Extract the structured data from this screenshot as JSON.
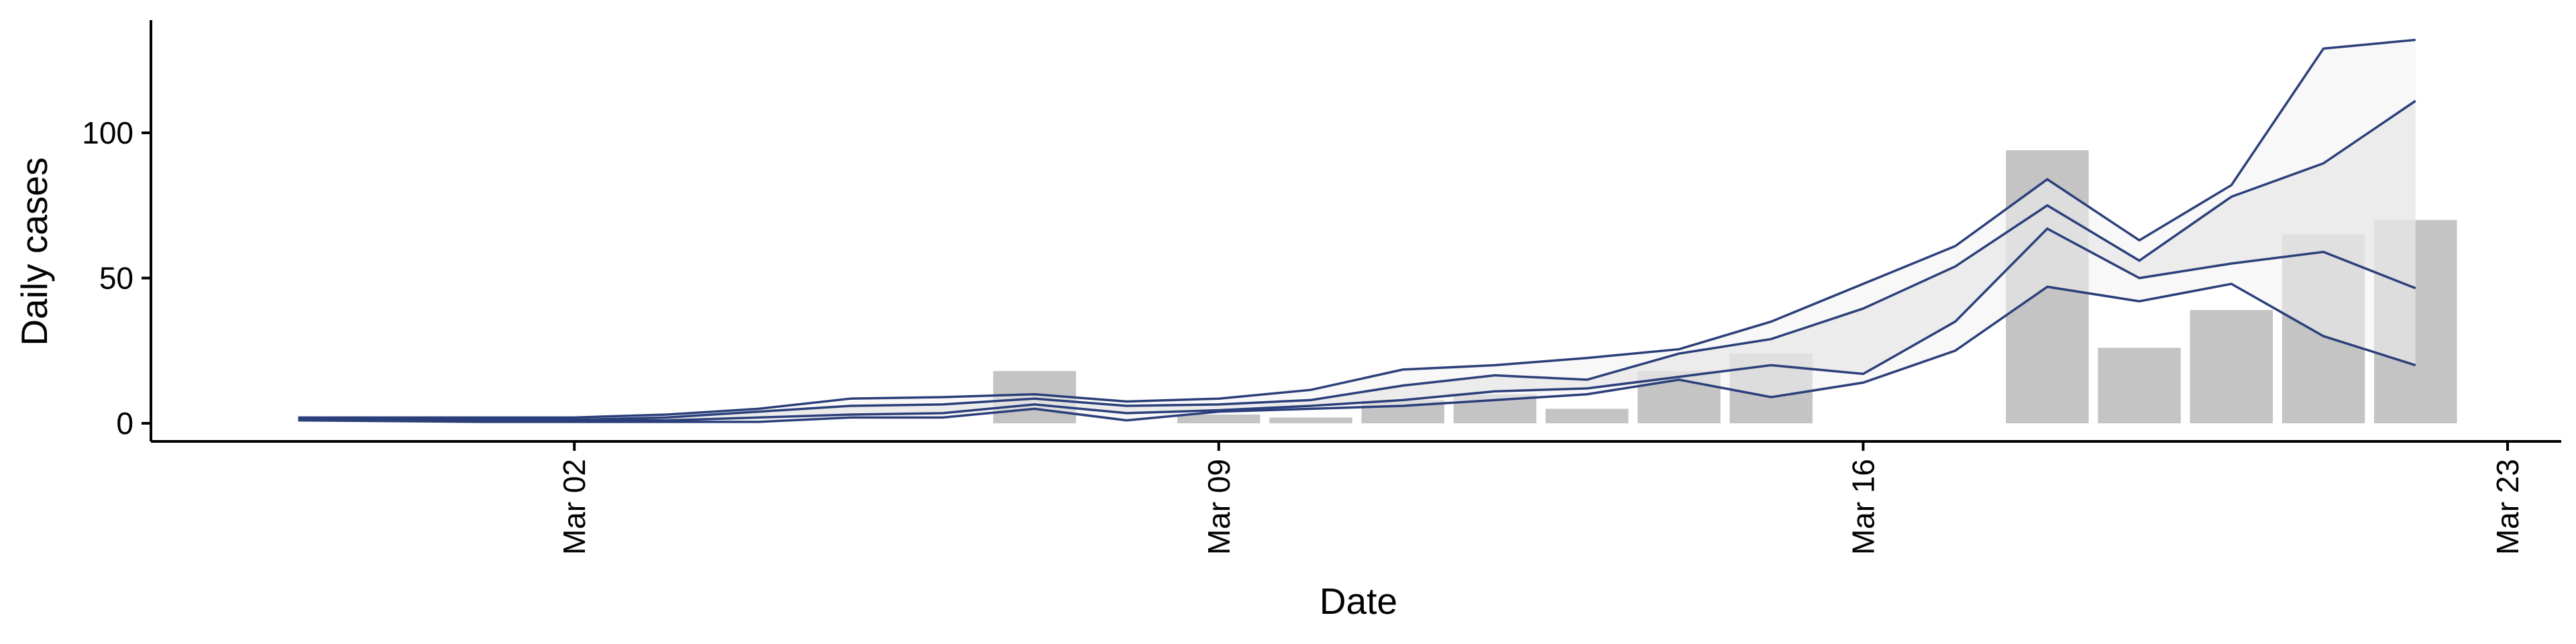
{
  "chart_data": {
    "type": "bar",
    "xlabel": "Date",
    "ylabel": "Daily cases",
    "x_ticks": [
      "Mar 02",
      "Mar 09",
      "Mar 16",
      "Mar 23"
    ],
    "y_ticks": [
      "0",
      "50",
      "100"
    ],
    "xlim": [
      "2020-02-26",
      "2020-03-23"
    ],
    "ylim": [
      -5,
      138
    ],
    "bars": {
      "color": "#c4c4c4",
      "dates": [
        "2020-03-07",
        "2020-03-09",
        "2020-03-10",
        "2020-03-11",
        "2020-03-12",
        "2020-03-13",
        "2020-03-14",
        "2020-03-15",
        "2020-03-18",
        "2020-03-19",
        "2020-03-20",
        "2020-03-21",
        "2020-03-22"
      ],
      "values": [
        18,
        3,
        2,
        8,
        10,
        5,
        18,
        24,
        94,
        26,
        39,
        65,
        70
      ]
    },
    "band_dates": [
      "2020-02-28",
      "2020-03-01",
      "2020-03-02",
      "2020-03-03",
      "2020-03-04",
      "2020-03-05",
      "2020-03-06",
      "2020-03-07",
      "2020-03-08",
      "2020-03-09",
      "2020-03-10",
      "2020-03-11",
      "2020-03-12",
      "2020-03-13",
      "2020-03-14",
      "2020-03-15",
      "2020-03-16",
      "2020-03-17",
      "2020-03-18",
      "2020-03-19",
      "2020-03-20",
      "2020-03-21",
      "2020-03-22"
    ],
    "line_color": "#2b3f7a",
    "bands": [
      {
        "fill": "#f3f3f3",
        "lower": [
          1,
          0.5,
          0.5,
          0.5,
          0.5,
          2,
          2,
          5,
          1,
          4,
          5,
          6,
          8,
          10,
          15,
          9,
          14,
          25,
          47,
          42,
          48,
          30,
          20
        ],
        "upper": [
          2,
          2,
          2,
          3,
          5,
          8.5,
          9,
          10,
          7.5,
          8.5,
          11.5,
          18.5,
          20,
          22.5,
          25.5,
          35,
          48,
          61,
          84,
          63,
          82,
          129,
          132
        ]
      },
      {
        "fill": "#e2e2e2",
        "lower": [
          1.2,
          1,
          1,
          1,
          2,
          3,
          3.5,
          6.5,
          3.5,
          4.5,
          6,
          8,
          11,
          12,
          16,
          20,
          17,
          35,
          67,
          50,
          55,
          59,
          46.5
        ],
        "upper": [
          1.5,
          1.2,
          1.2,
          2,
          4,
          6,
          6.5,
          8.5,
          6,
          6.5,
          8,
          13,
          16.5,
          15,
          24,
          29,
          39.5,
          54,
          75,
          56,
          78,
          89.5,
          111
        ]
      }
    ]
  }
}
